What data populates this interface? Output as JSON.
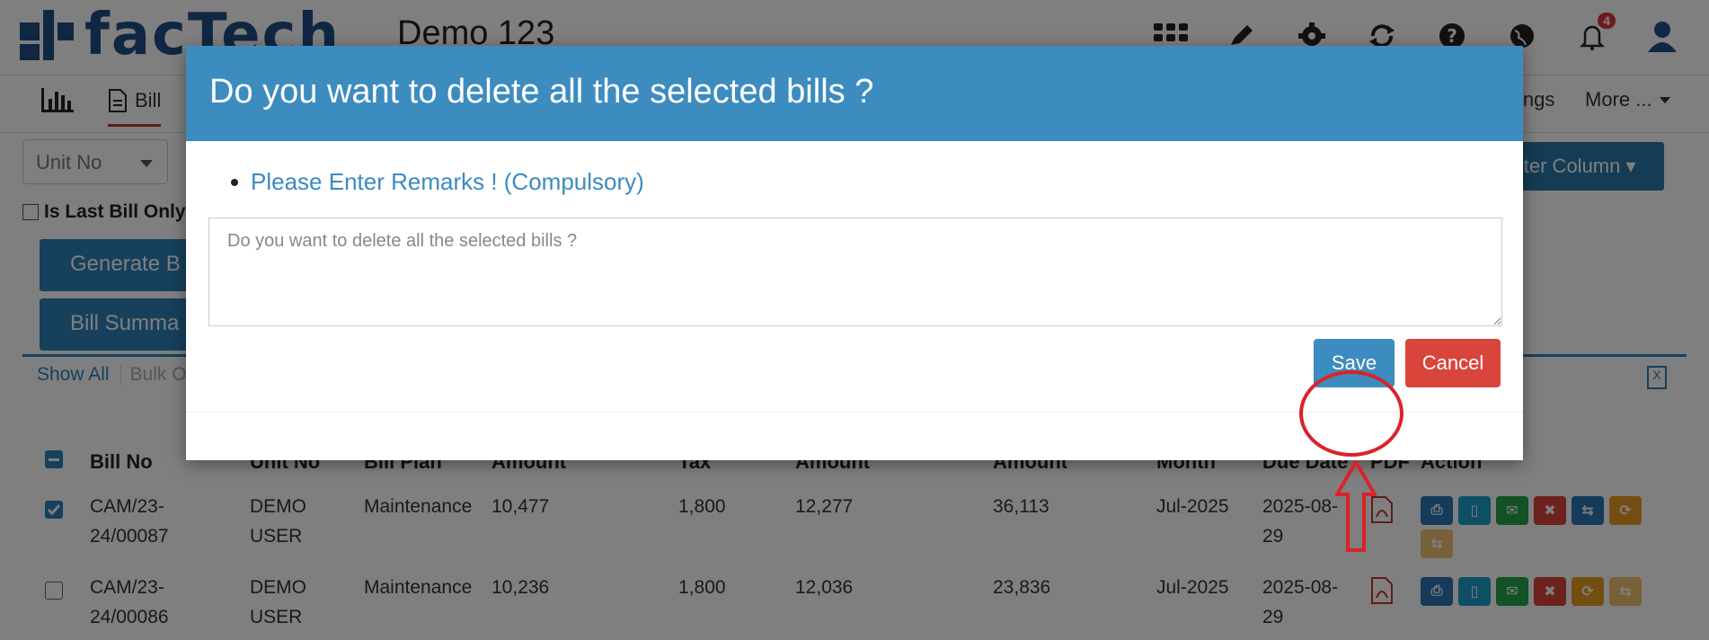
{
  "app": {
    "logo_text": "facTech",
    "company": "Demo 123",
    "notification_count": "4",
    "nav": {
      "bill_label": "Bill",
      "settings_label": "ings",
      "more_label": "More ..."
    },
    "unit_select_placeholder": "Unit No",
    "filter_column_label": "ilter Column",
    "last_bill_label": "Is Last Bill Only",
    "generate_button_label": "Generate B",
    "summary_button_label": "Bill Summa",
    "show_all_label": "Show All",
    "bulk_label": "Bulk Op",
    "table": {
      "headers": [
        "Bill No",
        "Unit No",
        "Bill Plan",
        "Amount",
        "Tax",
        "Amount",
        "Amount",
        "Month",
        "Due Date",
        "PDF",
        "Action"
      ],
      "rows": [
        {
          "checked": true,
          "bill_no_1": "CAM/23-",
          "bill_no_2": "24/00087",
          "unit_1": "DEMO",
          "unit_2": "USER",
          "plan": "Maintenance",
          "amount": "10,477",
          "tax": "1,800",
          "total": "12,277",
          "outstanding": "36,113",
          "month": "Jul-2025",
          "due_1": "2025-08-",
          "due_2": "29"
        },
        {
          "checked": false,
          "bill_no_1": "CAM/23-",
          "bill_no_2": "24/00086",
          "unit_1": "DEMO",
          "unit_2": "USER",
          "plan": "Maintenance",
          "amount": "10,236",
          "tax": "1,800",
          "total": "12,036",
          "outstanding": "23,836",
          "month": "Jul-2025",
          "due_1": "2025-08-",
          "due_2": "29"
        }
      ]
    }
  },
  "modal": {
    "title": "Do you want to delete all the selected bills ?",
    "remark_instruction": "Please Enter Remarks ! (Compulsory)",
    "remarks_placeholder": "Do you want to delete all the selected bills ?",
    "save_label": "Save",
    "cancel_label": "Cancel"
  },
  "colors": {
    "modal_header": "#3d8cbf",
    "save_button": "#3d8cbf",
    "cancel_button": "#d9453b",
    "annotation": "#d9232a"
  }
}
